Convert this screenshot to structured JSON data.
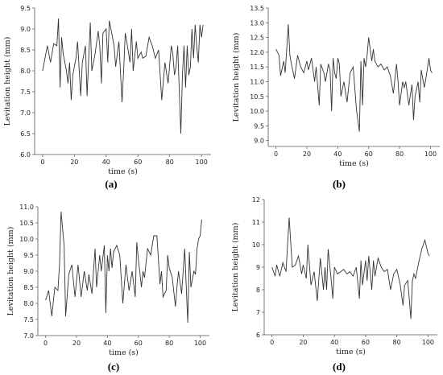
{
  "chart_data": [
    {
      "type": "line",
      "panel_label": "(a)",
      "xlabel": "time  (s)",
      "ylabel": "Levitation height  (mm)",
      "xlim": [
        -5,
        106
      ],
      "ylim": [
        6.0,
        9.5
      ],
      "xticks": [
        0,
        20,
        40,
        60,
        80,
        100
      ],
      "xtick_labels": [
        "0",
        "20",
        "40",
        "60",
        "80",
        "100"
      ],
      "yticks": [
        6.0,
        6.5,
        7.0,
        7.5,
        8.0,
        8.5,
        9.0,
        9.5
      ],
      "ytick_labels": [
        "6.0",
        "6.5",
        "7.0",
        "7.5",
        "8.0",
        "8.5",
        "9.0",
        "9.5"
      ],
      "x": [
        0,
        3,
        5,
        7,
        9,
        10,
        11,
        12,
        13,
        15,
        16,
        17,
        18,
        19,
        21,
        22,
        24,
        25,
        27,
        28,
        30,
        31,
        32,
        33,
        35,
        36,
        37,
        38,
        40,
        41,
        42,
        44,
        45,
        46,
        48,
        50,
        51,
        52,
        53,
        55,
        56,
        57,
        59,
        60,
        62,
        63,
        65,
        67,
        69,
        71,
        73,
        75,
        77,
        79,
        81,
        82,
        83,
        84,
        85,
        87,
        88,
        89,
        90,
        91,
        92,
        93,
        94,
        95,
        96,
        97,
        98,
        99,
        100,
        101
      ],
      "y": [
        8.0,
        8.6,
        8.2,
        8.65,
        8.6,
        9.25,
        7.6,
        8.8,
        8.4,
        8.0,
        7.7,
        8.2,
        7.3,
        7.9,
        8.3,
        8.7,
        7.4,
        8.2,
        8.6,
        7.4,
        9.15,
        8.0,
        8.2,
        8.4,
        8.95,
        8.6,
        7.7,
        8.9,
        9.0,
        8.2,
        9.2,
        8.8,
        8.6,
        8.1,
        8.7,
        7.25,
        8.0,
        8.9,
        8.7,
        8.2,
        9.0,
        8.0,
        8.7,
        8.3,
        8.45,
        8.3,
        8.35,
        8.8,
        8.6,
        8.3,
        8.5,
        7.3,
        8.2,
        7.7,
        8.6,
        8.4,
        7.9,
        8.1,
        8.6,
        6.5,
        7.9,
        8.6,
        7.6,
        8.6,
        7.9,
        8.1,
        9.0,
        8.3,
        9.1,
        8.6,
        8.2,
        9.1,
        8.8,
        9.1
      ]
    },
    {
      "type": "line",
      "panel_label": "(b)",
      "xlabel": "time  (s)",
      "ylabel": "Levitation height  (mm)",
      "xlim": [
        -5,
        106
      ],
      "ylim": [
        8.8,
        13.5
      ],
      "xticks": [
        0,
        20,
        40,
        60,
        80,
        100
      ],
      "xtick_labels": [
        "0",
        "20",
        "40",
        "60",
        "80",
        "100"
      ],
      "yticks": [
        9.0,
        9.5,
        10.0,
        10.5,
        11.0,
        11.5,
        12.0,
        12.5,
        13.0,
        13.5
      ],
      "ytick_labels": [
        "9.0",
        "9.5",
        "10.0",
        "10.5",
        "11.0",
        "11.5",
        "12.0",
        "12.5",
        "13.0",
        "13.5"
      ],
      "x": [
        0,
        2,
        3,
        5,
        6,
        8,
        9,
        10,
        12,
        14,
        16,
        18,
        20,
        21,
        23,
        25,
        26,
        28,
        29,
        31,
        32,
        34,
        35,
        36,
        37,
        38,
        39,
        40,
        41,
        42,
        44,
        46,
        48,
        50,
        52,
        54,
        55,
        56,
        57,
        58,
        59,
        60,
        62,
        63,
        64,
        66,
        68,
        70,
        72,
        74,
        76,
        78,
        79,
        80,
        82,
        83,
        84,
        86,
        88,
        89,
        90,
        92,
        93,
        94,
        96,
        97,
        99,
        100,
        101
      ],
      "y": [
        12.1,
        11.9,
        11.2,
        11.7,
        11.3,
        12.95,
        11.9,
        11.6,
        11.1,
        11.9,
        11.5,
        11.3,
        11.7,
        11.4,
        11.8,
        11.0,
        11.5,
        10.2,
        11.6,
        11.3,
        11.0,
        11.6,
        11.4,
        10.0,
        11.8,
        11.3,
        11.1,
        11.8,
        11.6,
        10.5,
        11.0,
        10.3,
        11.3,
        11.5,
        10.1,
        9.3,
        11.7,
        10.2,
        11.8,
        11.5,
        11.9,
        12.5,
        11.7,
        12.1,
        11.7,
        11.5,
        11.6,
        11.4,
        11.5,
        11.2,
        10.6,
        11.6,
        11.0,
        10.2,
        11.0,
        10.8,
        11.0,
        10.2,
        10.9,
        9.7,
        10.5,
        11.0,
        10.3,
        11.4,
        10.8,
        11.1,
        11.8,
        11.4,
        11.3
      ]
    },
    {
      "type": "line",
      "panel_label": "(c)",
      "xlabel": "time  (s)",
      "ylabel": "Levitation height  (mm)",
      "xlim": [
        -5,
        106
      ],
      "ylim": [
        7.0,
        11.0
      ],
      "xticks": [
        0,
        20,
        40,
        60,
        80,
        100
      ],
      "xtick_labels": [
        "0",
        "20",
        "40",
        "60",
        "80",
        "100"
      ],
      "yticks": [
        7.0,
        7.5,
        8.0,
        8.5,
        9.0,
        9.5,
        10.0,
        10.5,
        11.0
      ],
      "ytick_labels": [
        "7.0",
        "7.5",
        "8.0",
        "8.5",
        "9.0",
        "9.5",
        "10.0",
        "10.5",
        "11.0"
      ],
      "x": [
        0,
        2,
        4,
        6,
        8,
        9,
        10,
        12,
        13,
        15,
        17,
        19,
        21,
        23,
        25,
        27,
        28,
        30,
        32,
        33,
        35,
        36,
        38,
        39,
        40,
        41,
        42,
        43,
        44,
        46,
        48,
        50,
        52,
        54,
        56,
        58,
        59,
        60,
        62,
        63,
        64,
        66,
        68,
        70,
        72,
        74,
        75,
        76,
        78,
        79,
        80,
        82,
        84,
        85,
        86,
        88,
        90,
        92,
        93,
        94,
        96,
        97,
        98,
        99,
        100,
        101
      ],
      "y": [
        8.1,
        8.4,
        7.6,
        8.5,
        8.4,
        9.2,
        10.85,
        9.8,
        7.6,
        8.9,
        9.2,
        8.2,
        9.2,
        8.2,
        9.0,
        8.4,
        8.9,
        8.3,
        9.7,
        8.5,
        9.5,
        9.0,
        9.8,
        7.7,
        9.5,
        9.0,
        9.7,
        9.1,
        9.6,
        9.8,
        9.5,
        8.0,
        9.2,
        8.4,
        9.0,
        8.2,
        9.9,
        9.4,
        8.5,
        9.0,
        8.8,
        9.7,
        9.5,
        10.1,
        10.1,
        8.6,
        9.0,
        8.2,
        8.4,
        9.5,
        9.1,
        8.8,
        7.9,
        8.5,
        9.0,
        8.3,
        9.7,
        7.4,
        9.6,
        8.5,
        9.0,
        8.9,
        9.7,
        10.0,
        10.1,
        10.6
      ]
    },
    {
      "type": "line",
      "panel_label": "(d)",
      "xlabel": "time  (s)",
      "ylabel": "Levitation height  (mm)",
      "xlim": [
        -5,
        106
      ],
      "ylim": [
        6,
        12
      ],
      "xticks": [
        0,
        20,
        40,
        60,
        80,
        100
      ],
      "xtick_labels": [
        "0",
        "20",
        "40",
        "60",
        "80",
        "100"
      ],
      "yticks": [
        6,
        7,
        8,
        9,
        10,
        11,
        12
      ],
      "ytick_labels": [
        "6",
        "7",
        "8",
        "9",
        "10",
        "11",
        "12"
      ],
      "x": [
        0,
        2,
        3,
        5,
        7,
        9,
        11,
        13,
        15,
        17,
        19,
        20,
        22,
        23,
        25,
        27,
        29,
        31,
        33,
        34,
        35,
        36,
        38,
        39,
        40,
        42,
        44,
        46,
        48,
        50,
        52,
        54,
        56,
        57,
        58,
        60,
        61,
        62,
        64,
        65,
        66,
        68,
        70,
        72,
        74,
        76,
        78,
        80,
        82,
        84,
        85,
        87,
        88,
        89,
        90,
        91,
        92,
        94,
        96,
        98,
        100,
        101
      ],
      "y": [
        9.0,
        8.6,
        9.1,
        8.6,
        9.2,
        8.8,
        11.2,
        9.0,
        9.1,
        9.5,
        8.7,
        9.1,
        8.5,
        10.0,
        8.2,
        8.8,
        7.5,
        9.4,
        8.0,
        9.0,
        8.0,
        9.8,
        8.4,
        7.6,
        9.0,
        8.7,
        8.8,
        8.9,
        8.7,
        8.8,
        8.6,
        9.0,
        7.6,
        9.3,
        8.2,
        9.3,
        8.4,
        9.5,
        8.0,
        9.3,
        8.6,
        9.4,
        9.0,
        8.8,
        8.9,
        8.0,
        8.7,
        8.9,
        8.3,
        7.3,
        8.2,
        8.4,
        7.6,
        6.7,
        8.4,
        8.7,
        8.5,
        9.2,
        9.8,
        10.2,
        9.6,
        9.5
      ]
    }
  ]
}
